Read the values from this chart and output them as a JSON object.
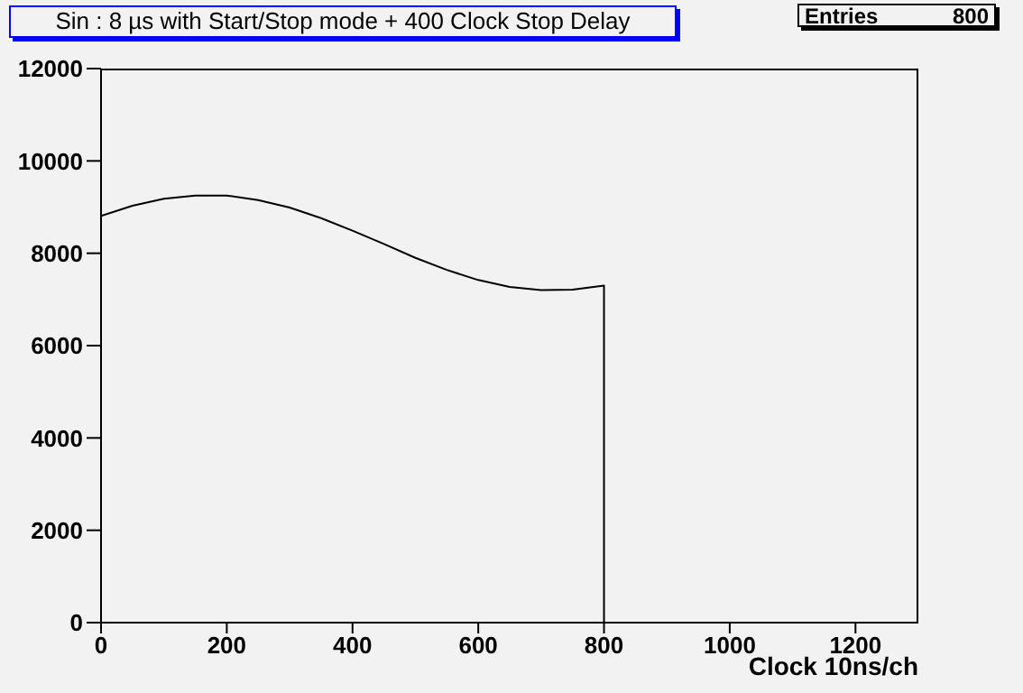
{
  "chart_data": {
    "type": "line",
    "title": "Sin : 8 µs with Start/Stop mode + 400 Clock Stop Delay",
    "xlabel": "Clock 10ns/ch",
    "annotations": [
      "Entries 800"
    ],
    "x": [
      0,
      50,
      100,
      150,
      200,
      250,
      300,
      350,
      400,
      450,
      500,
      550,
      600,
      650,
      700,
      750,
      800,
      800
    ],
    "series": [
      {
        "color": "#000000",
        "values": [
          8810,
          9030,
          9180,
          9250,
          9250,
          9150,
          8990,
          8760,
          8490,
          8200,
          7900,
          7640,
          7420,
          7270,
          7200,
          7210,
          7300,
          0
        ]
      }
    ],
    "xlim": [
      0,
      1300
    ],
    "xticks": [
      0,
      200,
      400,
      600,
      800,
      1000,
      1200
    ],
    "ylim": [
      0,
      12000
    ],
    "yticks": [
      0,
      2000,
      4000,
      6000,
      8000,
      10000,
      12000
    ],
    "grid": false,
    "marker": "none",
    "line_style": "solid"
  }
}
